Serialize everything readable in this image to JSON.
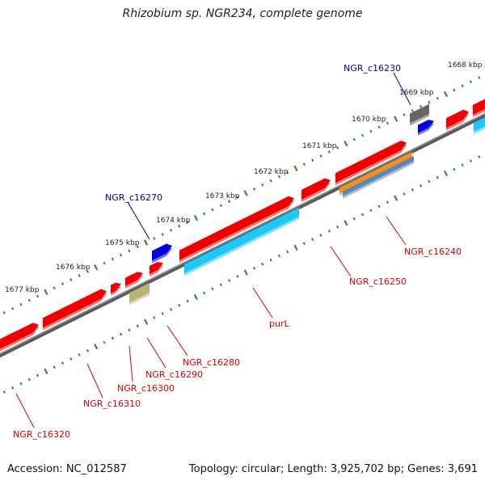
{
  "title": "Rhizobium sp. NGR234, complete genome",
  "footer": {
    "accession": "Accession: NC_012587",
    "summary": "Topology: circular; Length: 3,925,702 bp; Genes: 3,691"
  },
  "colors": {
    "backbone": "#777777",
    "ruler_dots": "#2e8b2e",
    "forward_gene": "#ee0000",
    "reverse_gene": "#0000dd",
    "gray_gene": "#666666",
    "cyan_gene": "#1ec8f5",
    "orange_gene": "#f0901e",
    "steel_gene": "#5a87b0",
    "khaki_gene": "#b8b478",
    "label_red": "#dd0000",
    "label_blue": "#0000aa"
  },
  "ruler": {
    "tick_labels": [
      "1668 kbp",
      "1669 kbp",
      "1670 kbp",
      "1671 kbp",
      "1672 kbp",
      "1673 kbp",
      "1674 kbp",
      "1675 kbp",
      "1676 kbp",
      "1677 kbp"
    ]
  },
  "genes": [
    {
      "label": "NGR_c16230",
      "color": "blue"
    },
    {
      "label": "NGR_c16270",
      "color": "blue"
    },
    {
      "label": "NGR_c16240",
      "color": "red"
    },
    {
      "label": "NGR_c16250",
      "color": "red"
    },
    {
      "label": "purL",
      "color": "red"
    },
    {
      "label": "NGR_c16280",
      "color": "red"
    },
    {
      "label": "NGR_c16290",
      "color": "red"
    },
    {
      "label": "NGR_c16300",
      "color": "red"
    },
    {
      "label": "NGR_c16310",
      "color": "red"
    },
    {
      "label": "NGR_c16320",
      "color": "red"
    }
  ]
}
